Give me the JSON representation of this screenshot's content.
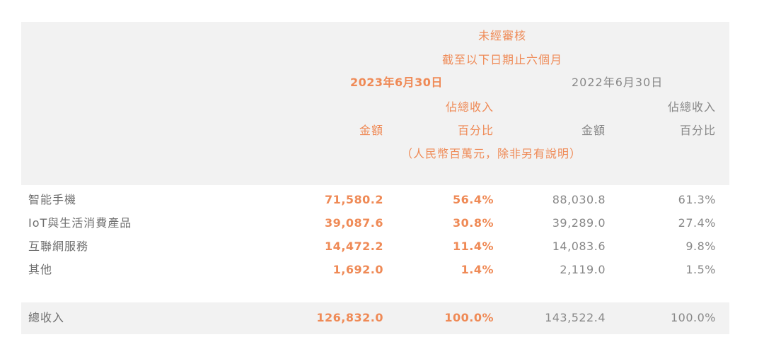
{
  "header": {
    "unaudited": "未經審核",
    "period": "截至以下日期止六個月",
    "date_2023": "2023年6月30日",
    "date_2022": "2022年6月30日",
    "pct_of_total_2023_line1": "佔總收入",
    "pct_of_total_2023_line2": "百分比",
    "amount_2023": "金額",
    "pct_of_total_2022_line1": "佔總收入",
    "pct_of_total_2022_line2": "百分比",
    "amount_2022": "金額",
    "unit_note": "（人民幣百萬元，除非另有說明）"
  },
  "rows": [
    {
      "label": "智能手機",
      "amount_2023": "71,580.2",
      "pct_2023": "56.4%",
      "amount_2022": "88,030.8",
      "pct_2022": "61.3%"
    },
    {
      "label": "IoT與生活消費產品",
      "amount_2023": "39,087.6",
      "pct_2023": "30.8%",
      "amount_2022": "39,289.0",
      "pct_2022": "27.4%"
    },
    {
      "label": "互聯網服務",
      "amount_2023": "14,472.2",
      "pct_2023": "11.4%",
      "amount_2022": "14,083.6",
      "pct_2022": "9.8%"
    },
    {
      "label": "其他",
      "amount_2023": "1,692.0",
      "pct_2023": "1.4%",
      "amount_2022": "2,119.0",
      "pct_2022": "1.5%"
    }
  ],
  "total": {
    "label": "總收入",
    "amount_2023": "126,832.0",
    "pct_2023": "100.0%",
    "amount_2022": "143,522.4",
    "pct_2022": "100.0%"
  },
  "colors": {
    "accent": "#ef8a56",
    "band": "#f2f2f2",
    "text": "#777777"
  }
}
